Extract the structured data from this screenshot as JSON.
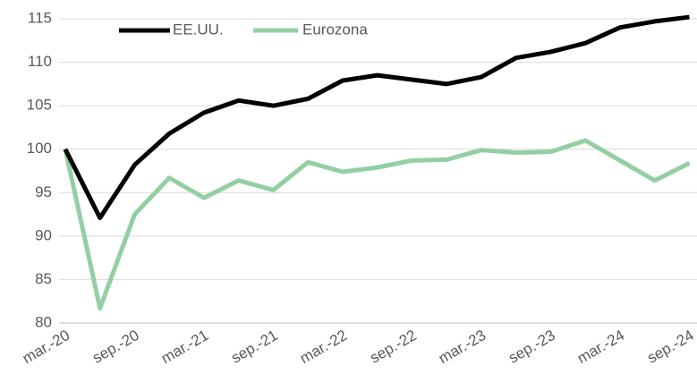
{
  "chart_data": {
    "type": "line",
    "categories": [
      "mar.-20",
      null,
      "sep.-20",
      null,
      "mar.-21",
      null,
      "sep.-21",
      null,
      "mar.-22",
      null,
      "sep.-22",
      null,
      "mar.-23",
      null,
      "sep.-23",
      null,
      "mar.-24",
      null,
      "sep.-24"
    ],
    "series": [
      {
        "name": "EE.UU.",
        "color": "#000000",
        "values": [
          100,
          92.1,
          98.2,
          101.8,
          104.2,
          105.6,
          105.0,
          105.8,
          107.9,
          108.5,
          108.0,
          107.5,
          108.3,
          110.5,
          111.2,
          112.2,
          114.0,
          114.7,
          115.2
        ]
      },
      {
        "name": "Eurozona",
        "color": "#93cfa3",
        "values": [
          100,
          81.7,
          92.5,
          96.7,
          94.4,
          96.4,
          95.3,
          98.5,
          97.4,
          97.9,
          98.7,
          98.8,
          99.9,
          99.6,
          99.7,
          101.0,
          98.7,
          96.4,
          98.4
        ]
      }
    ],
    "ylim": [
      80,
      115
    ],
    "yticks": [
      80,
      85,
      90,
      95,
      100,
      105,
      110,
      115
    ],
    "grid": true,
    "legend": "top"
  }
}
